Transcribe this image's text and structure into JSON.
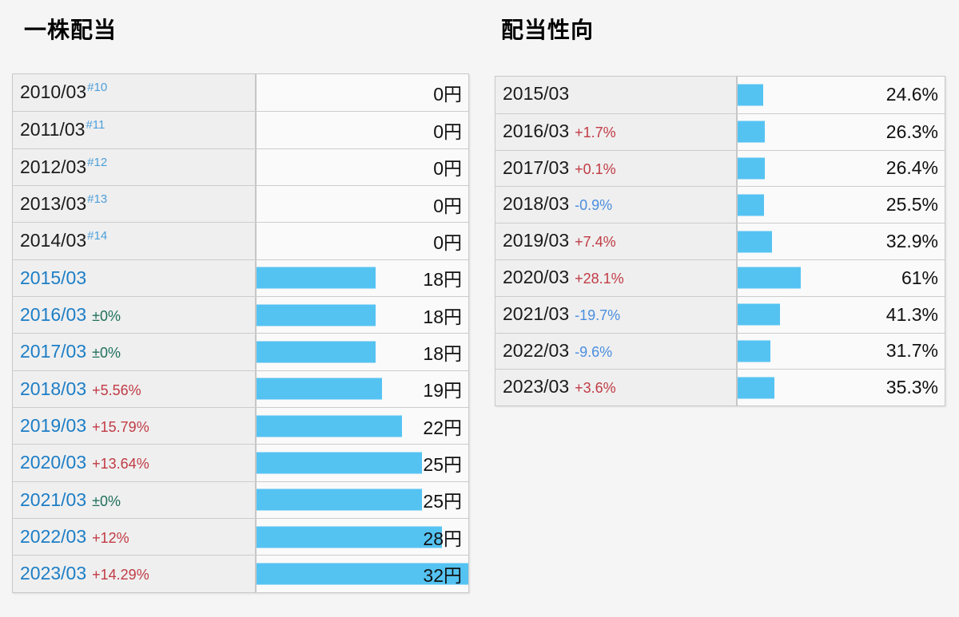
{
  "colors": {
    "bar": "#55c3f2",
    "link": "#1d7ec6",
    "footnote": "#4d9fdb",
    "up": "#c13b45",
    "down": "#4a8ee0",
    "flat": "#20705c",
    "page_background": "#f5f5f6",
    "year_cell_background": "#efefef",
    "value_cell_background": "#fafafa"
  },
  "sections": [
    {
      "title": "一株配当",
      "unit": "円",
      "bar_scale_max": 32,
      "rows": [
        {
          "year": "2010/03",
          "year_link": false,
          "footnote": "#10",
          "change": "",
          "dir": "",
          "value": 0,
          "value_label": "0円"
        },
        {
          "year": "2011/03",
          "year_link": false,
          "footnote": "#11",
          "change": "",
          "dir": "",
          "value": 0,
          "value_label": "0円"
        },
        {
          "year": "2012/03",
          "year_link": false,
          "footnote": "#12",
          "change": "",
          "dir": "",
          "value": 0,
          "value_label": "0円"
        },
        {
          "year": "2013/03",
          "year_link": false,
          "footnote": "#13",
          "change": "",
          "dir": "",
          "value": 0,
          "value_label": "0円"
        },
        {
          "year": "2014/03",
          "year_link": false,
          "footnote": "#14",
          "change": "",
          "dir": "",
          "value": 0,
          "value_label": "0円"
        },
        {
          "year": "2015/03",
          "year_link": true,
          "footnote": "",
          "change": "",
          "dir": "",
          "value": 18,
          "value_label": "18円"
        },
        {
          "year": "2016/03",
          "year_link": true,
          "footnote": "",
          "change": "±0%",
          "dir": "flat",
          "value": 18,
          "value_label": "18円"
        },
        {
          "year": "2017/03",
          "year_link": true,
          "footnote": "",
          "change": "±0%",
          "dir": "flat",
          "value": 18,
          "value_label": "18円"
        },
        {
          "year": "2018/03",
          "year_link": true,
          "footnote": "",
          "change": "+5.56%",
          "dir": "up",
          "value": 19,
          "value_label": "19円"
        },
        {
          "year": "2019/03",
          "year_link": true,
          "footnote": "",
          "change": "+15.79%",
          "dir": "up",
          "value": 22,
          "value_label": "22円"
        },
        {
          "year": "2020/03",
          "year_link": true,
          "footnote": "",
          "change": "+13.64%",
          "dir": "up",
          "value": 25,
          "value_label": "25円"
        },
        {
          "year": "2021/03",
          "year_link": true,
          "footnote": "",
          "change": "±0%",
          "dir": "flat",
          "value": 25,
          "value_label": "25円"
        },
        {
          "year": "2022/03",
          "year_link": true,
          "footnote": "",
          "change": "+12%",
          "dir": "up",
          "value": 28,
          "value_label": "28円"
        },
        {
          "year": "2023/03",
          "year_link": true,
          "footnote": "",
          "change": "+14.29%",
          "dir": "up",
          "value": 32,
          "value_label": "32円"
        }
      ]
    },
    {
      "title": "配当性向",
      "unit": "%",
      "bar_scale_max": 200,
      "rows": [
        {
          "year": "2015/03",
          "year_link": false,
          "footnote": "",
          "change": "",
          "dir": "",
          "value": 24.6,
          "value_label": "24.6%"
        },
        {
          "year": "2016/03",
          "year_link": false,
          "footnote": "",
          "change": "+1.7%",
          "dir": "up",
          "value": 26.3,
          "value_label": "26.3%"
        },
        {
          "year": "2017/03",
          "year_link": false,
          "footnote": "",
          "change": "+0.1%",
          "dir": "up",
          "value": 26.4,
          "value_label": "26.4%"
        },
        {
          "year": "2018/03",
          "year_link": false,
          "footnote": "",
          "change": "-0.9%",
          "dir": "down",
          "value": 25.5,
          "value_label": "25.5%"
        },
        {
          "year": "2019/03",
          "year_link": false,
          "footnote": "",
          "change": "+7.4%",
          "dir": "up",
          "value": 32.9,
          "value_label": "32.9%"
        },
        {
          "year": "2020/03",
          "year_link": false,
          "footnote": "",
          "change": "+28.1%",
          "dir": "up",
          "value": 61,
          "value_label": "61%"
        },
        {
          "year": "2021/03",
          "year_link": false,
          "footnote": "",
          "change": "-19.7%",
          "dir": "down",
          "value": 41.3,
          "value_label": "41.3%"
        },
        {
          "year": "2022/03",
          "year_link": false,
          "footnote": "",
          "change": "-9.6%",
          "dir": "down",
          "value": 31.7,
          "value_label": "31.7%"
        },
        {
          "year": "2023/03",
          "year_link": false,
          "footnote": "",
          "change": "+3.6%",
          "dir": "up",
          "value": 35.3,
          "value_label": "35.3%"
        }
      ]
    }
  ],
  "chart_data": [
    {
      "type": "bar",
      "title": "一株配当",
      "orientation": "horizontal",
      "categories": [
        "2010/03",
        "2011/03",
        "2012/03",
        "2013/03",
        "2014/03",
        "2015/03",
        "2016/03",
        "2017/03",
        "2018/03",
        "2019/03",
        "2020/03",
        "2021/03",
        "2022/03",
        "2023/03"
      ],
      "values": [
        0,
        0,
        0,
        0,
        0,
        18,
        18,
        18,
        19,
        22,
        25,
        25,
        28,
        32
      ],
      "data_labels": [
        "0円",
        "0円",
        "0円",
        "0円",
        "0円",
        "18円",
        "18円",
        "18円",
        "19円",
        "22円",
        "25円",
        "25円",
        "28円",
        "32円"
      ],
      "yoy_change_labels": [
        "",
        "",
        "",
        "",
        "",
        "",
        "±0%",
        "±0%",
        "+5.56%",
        "+15.79%",
        "+13.64%",
        "±0%",
        "+12%",
        "+14.29%"
      ],
      "annotations": [
        "#10",
        "#11",
        "#12",
        "#13",
        "#14"
      ],
      "xlabel": "",
      "ylabel": "",
      "unit": "円",
      "bar_axis_range": [
        0,
        32
      ],
      "grid": false,
      "legend": false
    },
    {
      "type": "bar",
      "title": "配当性向",
      "orientation": "horizontal",
      "categories": [
        "2015/03",
        "2016/03",
        "2017/03",
        "2018/03",
        "2019/03",
        "2020/03",
        "2021/03",
        "2022/03",
        "2023/03"
      ],
      "values": [
        24.6,
        26.3,
        26.4,
        25.5,
        32.9,
        61,
        41.3,
        31.7,
        35.3
      ],
      "data_labels": [
        "24.6%",
        "26.3%",
        "26.4%",
        "25.5%",
        "32.9%",
        "61%",
        "41.3%",
        "31.7%",
        "35.3%"
      ],
      "yoy_change_labels": [
        "",
        "+1.7%",
        "+0.1%",
        "-0.9%",
        "+7.4%",
        "+28.1%",
        "-19.7%",
        "-9.6%",
        "+3.6%"
      ],
      "xlabel": "",
      "ylabel": "",
      "unit": "%",
      "bar_axis_range": [
        0,
        200
      ],
      "grid": false,
      "legend": false
    }
  ]
}
